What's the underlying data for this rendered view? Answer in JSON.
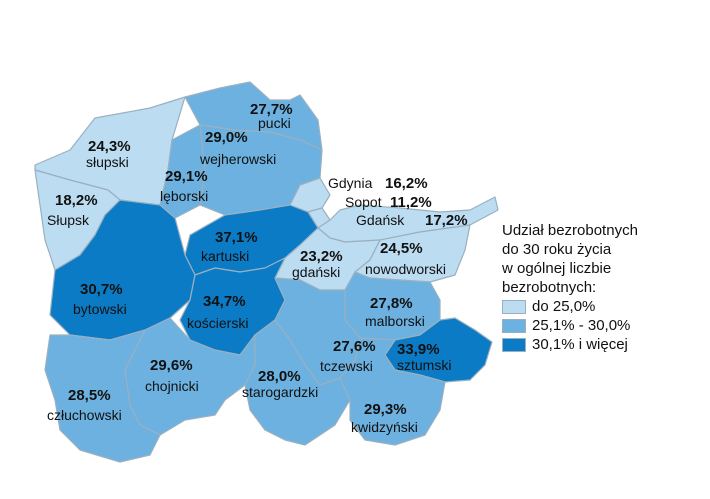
{
  "colors": {
    "light": "#bcdcf1",
    "medium": "#6cb1e0",
    "dark": "#0b7bc6",
    "border": "#9ab0c0"
  },
  "legend": {
    "title_lines": [
      "Udział bezrobotnych",
      "do 30 roku życia",
      "w ogólnej liczbie",
      "bezrobotnych:"
    ],
    "items": [
      {
        "label": "do 25,0%",
        "color": "#bcdcf1"
      },
      {
        "label": "25,1% - 30,0%",
        "color": "#6cb1e0"
      },
      {
        "label": "30,1% i więcej",
        "color": "#0b7bc6"
      }
    ]
  },
  "regions": [
    {
      "id": "pucki",
      "name": "pucki",
      "value": "27,7%",
      "class": "medium"
    },
    {
      "id": "slupski",
      "name": "słupski",
      "value": "24,3%",
      "class": "light"
    },
    {
      "id": "wejherowski",
      "name": "wejherowski",
      "value": "29,0%",
      "class": "medium"
    },
    {
      "id": "leborski",
      "name": "lęborski",
      "value": "29,1%",
      "class": "medium"
    },
    {
      "id": "slupsk",
      "name": "Słupsk",
      "value": "18,2%",
      "class": "light"
    },
    {
      "id": "gdynia",
      "name": "Gdynia",
      "value": "16,2%",
      "class": "light"
    },
    {
      "id": "sopot",
      "name": "Sopot",
      "value": "11,2%",
      "class": "light"
    },
    {
      "id": "gdansk",
      "name": "Gdańsk",
      "value": "17,2%",
      "class": "light"
    },
    {
      "id": "kartuski",
      "name": "kartuski",
      "value": "37,1%",
      "class": "dark"
    },
    {
      "id": "gdanski",
      "name": "gdański",
      "value": "23,2%",
      "class": "light"
    },
    {
      "id": "nowodworski",
      "name": "nowodworski",
      "value": "24,5%",
      "class": "light"
    },
    {
      "id": "bytowski",
      "name": "bytowski",
      "value": "30,7%",
      "class": "dark"
    },
    {
      "id": "koscierski",
      "name": "kościerski",
      "value": "34,7%",
      "class": "dark"
    },
    {
      "id": "malborski",
      "name": "malborski",
      "value": "27,8%",
      "class": "medium"
    },
    {
      "id": "tczewski",
      "name": "tczewski",
      "value": "27,6%",
      "class": "medium"
    },
    {
      "id": "sztumski",
      "name": "sztumski",
      "value": "33,9%",
      "class": "dark"
    },
    {
      "id": "chojnicki",
      "name": "chojnicki",
      "value": "29,6%",
      "class": "medium"
    },
    {
      "id": "czluchowski",
      "name": "człuchowski",
      "value": "28,5%",
      "class": "medium"
    },
    {
      "id": "starogardzki",
      "name": "starogardzki",
      "value": "28,0%",
      "class": "medium"
    },
    {
      "id": "kwidzynski",
      "name": "kwidzyński",
      "value": "29,3%",
      "class": "medium"
    }
  ]
}
